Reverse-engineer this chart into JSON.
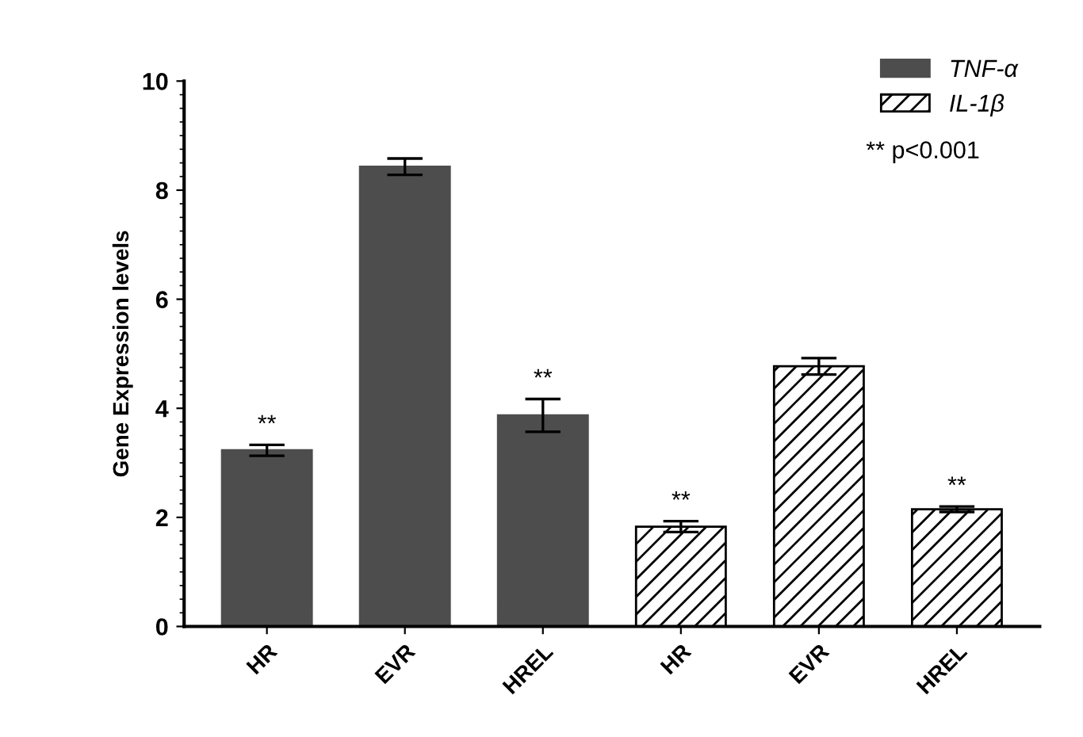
{
  "chart_data": {
    "type": "bar",
    "ylabel": "Gene Expression levels",
    "categories": [
      "HR",
      "EVR",
      "HREL",
      "HR",
      "EVR",
      "HREL"
    ],
    "series": [
      {
        "name": "TNF-α",
        "color": "#4d4d4d",
        "values": [
          3.23,
          8.43,
          3.87,
          null,
          null,
          null
        ],
        "errors": [
          0.1,
          0.15,
          0.3,
          null,
          null,
          null
        ],
        "value_labels": [
          "**",
          null,
          "**",
          null,
          null,
          null
        ]
      },
      {
        "name": "IL-1β",
        "color": "#000000",
        "values": [
          null,
          null,
          null,
          1.83,
          4.77,
          2.15
        ],
        "errors": [
          null,
          null,
          null,
          0.1,
          0.15,
          0.05
        ],
        "value_labels": [
          null,
          null,
          null,
          "**",
          null,
          "**"
        ]
      }
    ],
    "annotations": [
      "** p<0.001"
    ],
    "ylim": [
      0,
      10
    ],
    "yticks": [
      0,
      2,
      4,
      6,
      8,
      10
    ],
    "grid": false,
    "legend": "top right"
  }
}
